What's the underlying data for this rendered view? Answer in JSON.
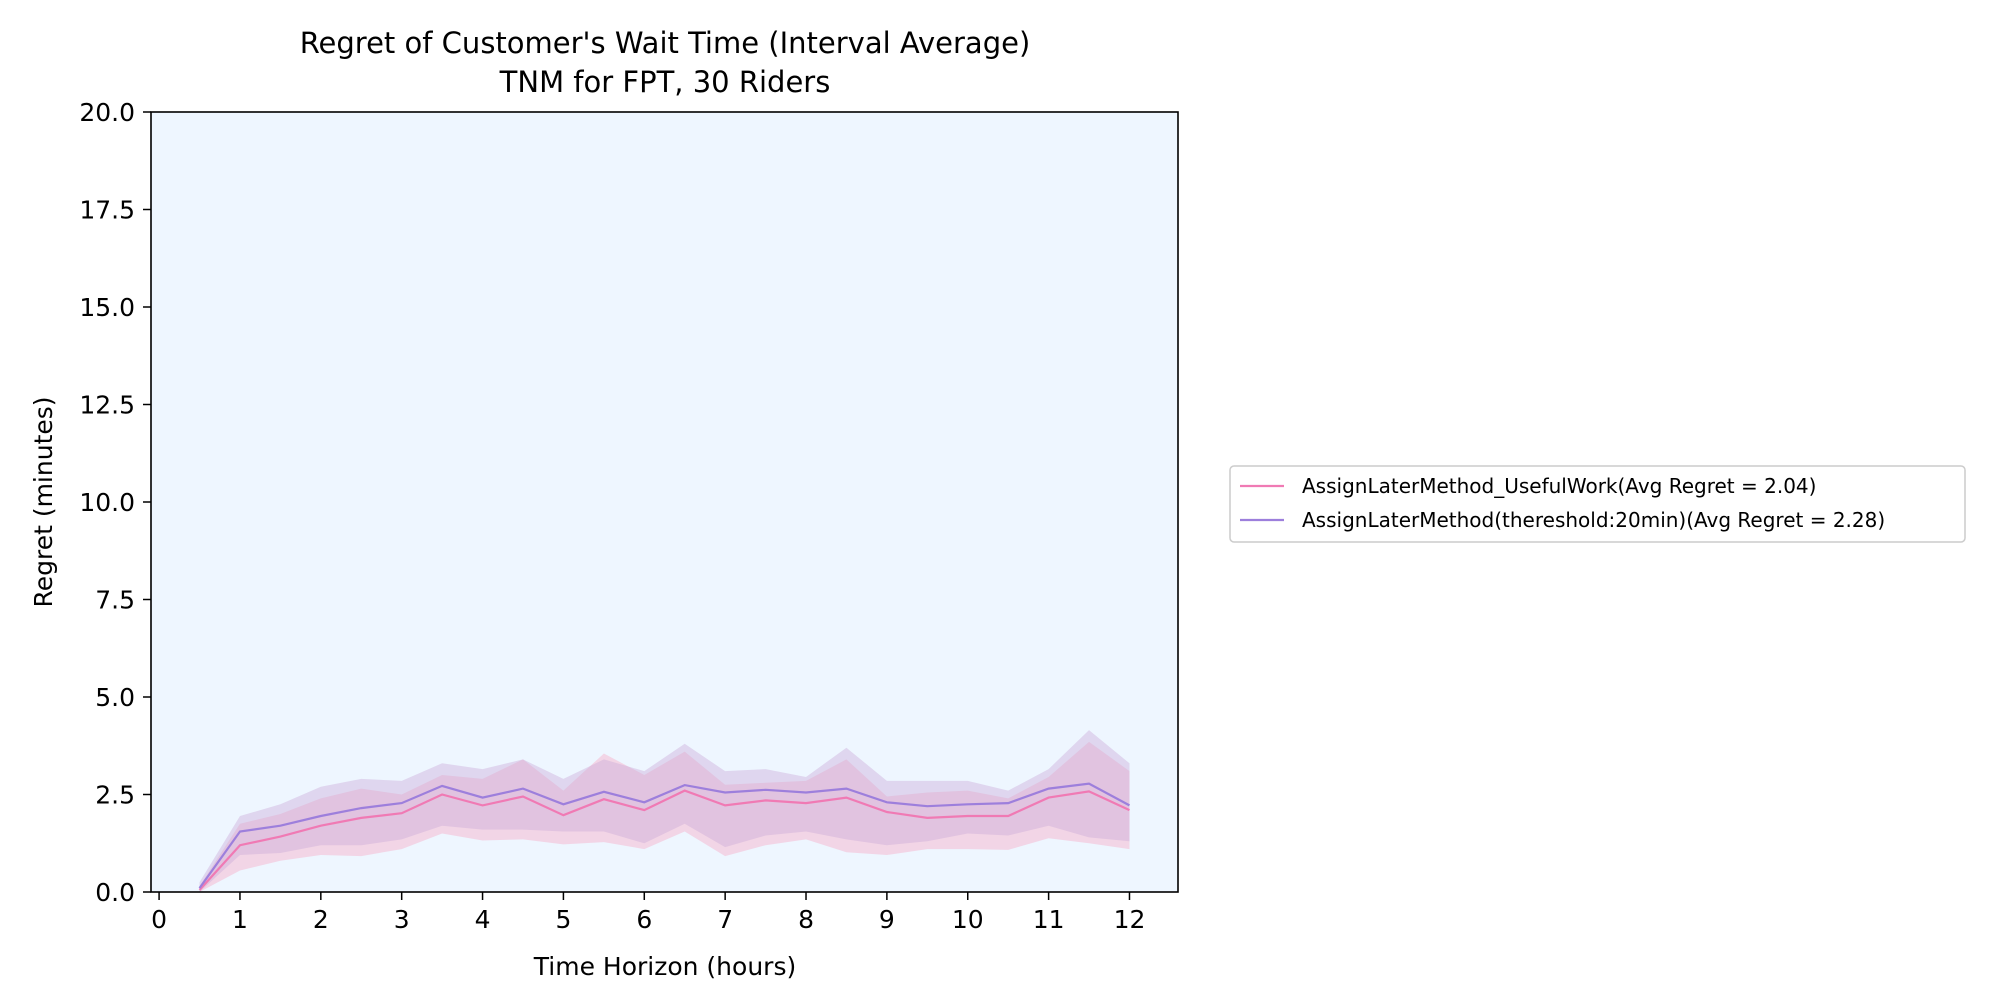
{
  "chart_data": {
    "type": "line",
    "title": "Regret of Customer's Wait Time (Interval Average)",
    "subtitle": "TNM for FPT, 30 Riders",
    "xlabel": "Time Horizon (hours)",
    "ylabel": "Regret (minutes)",
    "xlim": [
      -0.1,
      12.6
    ],
    "ylim": [
      0,
      20
    ],
    "xticks": [
      "0",
      "1",
      "2",
      "3",
      "4",
      "5",
      "6",
      "7",
      "8",
      "9",
      "10",
      "11",
      "12"
    ],
    "yticks": [
      "0.0",
      "2.5",
      "5.0",
      "7.5",
      "10.0",
      "12.5",
      "15.0",
      "17.5",
      "20.0"
    ],
    "grid": false,
    "legend_position": "outside-right",
    "plot_background": "#eef6ff",
    "x": [
      0.5,
      1,
      1.5,
      2,
      2.5,
      3,
      3.5,
      4,
      4.5,
      5,
      5.5,
      6,
      6.5,
      7,
      7.5,
      8,
      8.5,
      9,
      9.5,
      10,
      10.5,
      11,
      11.5,
      12
    ],
    "series": [
      {
        "name": "AssignLaterMethod_UsefulWork(Avg Regret = 2.04)",
        "color": "#f07ab4",
        "band_color": "#f7a6c0",
        "values": [
          0.05,
          1.2,
          1.42,
          1.7,
          1.9,
          2.02,
          2.5,
          2.22,
          2.45,
          1.97,
          2.38,
          2.1,
          2.6,
          2.22,
          2.35,
          2.28,
          2.42,
          2.05,
          1.9,
          1.95,
          1.95,
          2.42,
          2.58,
          2.1
        ],
        "lower": [
          0.0,
          0.55,
          0.8,
          0.95,
          0.92,
          1.1,
          1.5,
          1.32,
          1.35,
          1.22,
          1.28,
          1.1,
          1.55,
          0.92,
          1.2,
          1.35,
          1.02,
          0.95,
          1.1,
          1.1,
          1.08,
          1.38,
          1.25,
          1.1
        ],
        "upper": [
          0.15,
          1.75,
          2.0,
          2.4,
          2.65,
          2.5,
          3.0,
          2.9,
          3.4,
          2.6,
          3.55,
          3.0,
          3.6,
          2.75,
          2.8,
          2.85,
          3.4,
          2.45,
          2.55,
          2.6,
          2.4,
          2.95,
          3.85,
          3.1
        ]
      },
      {
        "name": "AssignLaterMethod(thereshold:20min)(Avg Regret = 2.28)",
        "color": "#9d7fdc",
        "band_color": "#c9a8d8",
        "values": [
          0.1,
          1.55,
          1.7,
          1.95,
          2.15,
          2.28,
          2.72,
          2.42,
          2.65,
          2.25,
          2.57,
          2.3,
          2.74,
          2.55,
          2.62,
          2.55,
          2.65,
          2.3,
          2.2,
          2.25,
          2.28,
          2.65,
          2.78,
          2.22
        ],
        "lower": [
          0.0,
          0.95,
          1.0,
          1.2,
          1.2,
          1.35,
          1.7,
          1.6,
          1.6,
          1.55,
          1.55,
          1.25,
          1.75,
          1.15,
          1.45,
          1.55,
          1.35,
          1.2,
          1.3,
          1.5,
          1.45,
          1.7,
          1.4,
          1.3
        ],
        "upper": [
          0.25,
          1.95,
          2.25,
          2.7,
          2.9,
          2.85,
          3.3,
          3.15,
          3.4,
          2.9,
          3.4,
          3.1,
          3.8,
          3.1,
          3.15,
          2.95,
          3.7,
          2.85,
          2.85,
          2.85,
          2.6,
          3.15,
          4.15,
          3.3
        ]
      }
    ]
  }
}
